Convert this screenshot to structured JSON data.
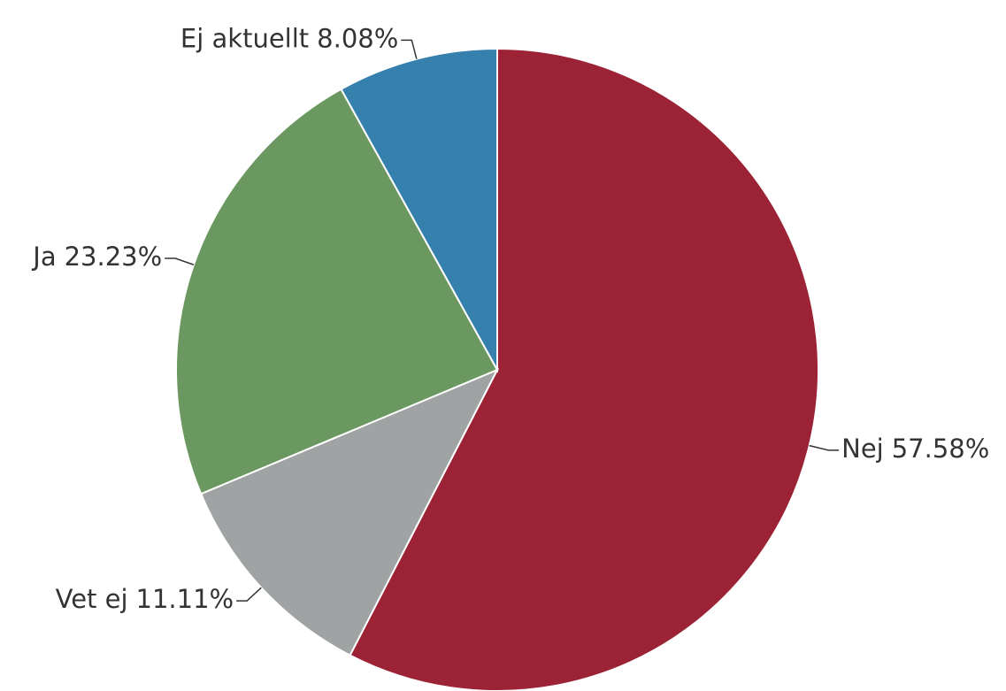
{
  "chart_data": {
    "type": "pie",
    "categories": [
      "Nej",
      "Vet ej",
      "Ja",
      "Ej aktuellt"
    ],
    "values": [
      57.58,
      11.11,
      23.23,
      8.08
    ],
    "value_labels": [
      "57.58%",
      "11.11%",
      "23.23%",
      "8.08%"
    ],
    "colors": [
      "#9b2335",
      "#a0a3a3",
      "#6a9860",
      "#3580ad"
    ]
  }
}
